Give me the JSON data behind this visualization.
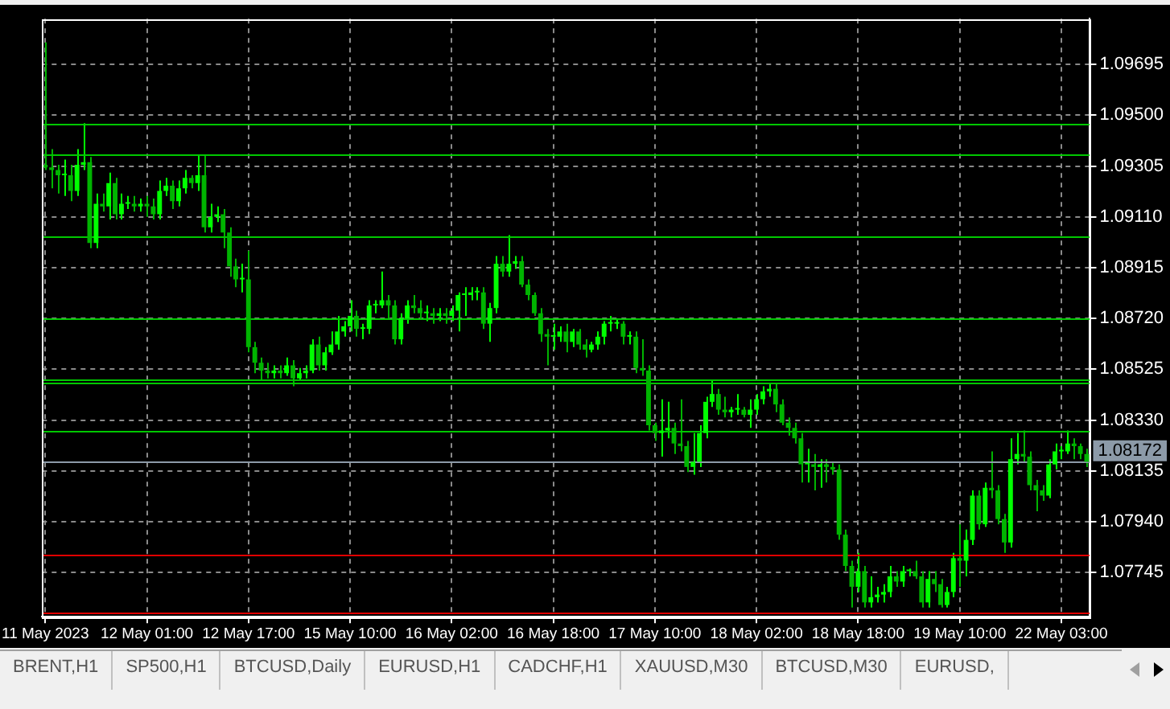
{
  "chart_data": {
    "type": "candlestick",
    "categories": [
      "11 May 2023",
      null,
      null,
      null,
      null,
      null,
      null,
      null,
      null,
      null,
      null,
      null,
      null,
      null,
      null,
      null,
      "12 May 01:00",
      null,
      null,
      null,
      null,
      null,
      null,
      null,
      null,
      null,
      null,
      null,
      null,
      null,
      null,
      null,
      "12 May 17:00",
      null,
      null,
      null,
      null,
      null,
      null,
      null,
      null,
      null,
      null,
      null,
      null,
      null,
      null,
      null,
      "15 May 10:00",
      null,
      null,
      null,
      null,
      null,
      null,
      null,
      null,
      null,
      null,
      null,
      null,
      null,
      null,
      null,
      "16 May 02:00",
      null,
      null,
      null,
      null,
      null,
      null,
      null,
      null,
      null,
      null,
      null,
      null,
      null,
      null,
      null,
      "16 May 18:00",
      null,
      null,
      null,
      null,
      null,
      null,
      null,
      null,
      null,
      null,
      null,
      null,
      null,
      null,
      null,
      "17 May 10:00",
      null,
      null,
      null,
      null,
      null,
      null,
      null,
      null,
      null,
      null,
      null,
      null,
      null,
      null,
      null,
      "18 May 02:00",
      null,
      null,
      null,
      null,
      null,
      null,
      null,
      null,
      null,
      null,
      null,
      null,
      null,
      null,
      null,
      "18 May 18:00",
      null,
      null,
      null,
      null,
      null,
      null,
      null,
      null,
      null,
      null,
      null,
      null,
      null,
      null,
      null,
      "19 May 10:00",
      null,
      null,
      null,
      null,
      null,
      null,
      null,
      null,
      null,
      null,
      null,
      null,
      null,
      null,
      null,
      "22 May 03:00",
      null,
      null,
      null,
      null
    ],
    "colors": [
      "#00b400",
      "#00b400",
      "#00b400",
      "#00ff00",
      "#00b400",
      "#00ff00",
      "#00ff00",
      "#00b400",
      "#00ff00",
      "#00b400",
      "#00ff00",
      "#00b400",
      "#00ff00",
      "#00ff00",
      "#00b400",
      "#00ff00",
      "#00b400",
      "#00b400",
      "#00ff00",
      "#00ff00",
      "#00b400",
      "#00ff00",
      "#00ff00",
      "#00b400",
      "#00ff00",
      "#00b400",
      "#00ff00",
      "#00ff00",
      "#00b400",
      "#00b400",
      "#00b400",
      "#00ff00",
      "#00b400",
      "#00b400",
      "#00b400",
      "#00b400",
      "#00ff00",
      "#00b400",
      "#00ff00",
      "#00b400",
      "#00ff00",
      "#00ff00",
      "#00ff00",
      "#00b400",
      "#00ff00",
      "#00ff00",
      "#00ff00",
      "#00ff00",
      "#00ff00",
      "#00b400",
      "#00ff00",
      "#00ff00",
      "#00ff00",
      "#00ff00",
      "#00b400",
      "#00b400",
      "#00ff00",
      "#00ff00",
      "#00b400",
      "#00b400",
      "#00ff00",
      "#00b400",
      "#00ff00",
      "#00b400",
      "#00ff00",
      "#00ff00",
      "#00ff00",
      "#00ff00",
      "#00ff00",
      "#00b400",
      "#00ff00",
      "#00ff00",
      "#00b400",
      "#00ff00",
      "#00ff00",
      "#00b400",
      "#00b400",
      "#00b400",
      "#00b400",
      "#00b400",
      "#00ff00",
      "#00ff00",
      "#00b400",
      "#00ff00",
      "#00b400",
      "#00b400",
      "#00ff00",
      "#00ff00",
      "#00ff00",
      "#00ff00",
      "#00ff00",
      "#00b400",
      "#00ff00",
      "#00b400",
      "#00b400",
      "#00b400",
      "#00b400",
      "#00ff00",
      "#00ff00",
      "#00b400",
      "#00b400",
      "#00b400",
      "#00ff00",
      "#00ff00",
      "#00ff00",
      "#00ff00",
      "#00b400",
      "#00b400",
      "#00ff00",
      "#00ff00",
      "#00b400",
      "#00ff00",
      "#00ff00",
      "#00ff00",
      "#00ff00",
      "#00b400",
      "#00b400",
      "#00b400",
      "#00b400",
      "#00b400",
      "#00ff00",
      "#00b400",
      "#00ff00",
      "#00b400",
      "#00b400",
      "#00b400",
      "#00b400",
      "#00b400",
      "#00ff00",
      "#00b400",
      "#00ff00",
      "#00ff00",
      "#00ff00",
      "#00ff00",
      "#00b400",
      "#00ff00",
      "#00ff00",
      "#00b400",
      "#00b400",
      "#00ff00",
      "#00b400",
      "#00b400",
      "#00ff00",
      "#00ff00",
      "#00b400",
      "#00ff00",
      "#00ff00",
      "#00b400",
      "#00ff00",
      "#00b400",
      "#00b400",
      "#00b400",
      "#00ff00",
      "#00ff00",
      "#00b400",
      "#00b400",
      "#00b400",
      "#00b400",
      "#00ff00",
      "#00ff00",
      "#00ff00",
      "#00ff00",
      "#00b400",
      "#00b400",
      "#00b400"
    ],
    "ohlc": [
      [
        1.0931,
        1.0978,
        1.0929,
        1.093
      ],
      [
        1.093,
        1.0937,
        1.0922,
        1.0929
      ],
      [
        1.0929,
        1.0931,
        1.092,
        1.0927
      ],
      [
        1.0927,
        1.0933,
        1.0919,
        1.0927
      ],
      [
        1.0927,
        1.0931,
        1.0917,
        1.0921
      ],
      [
        1.0921,
        1.0937,
        1.0919,
        1.0931
      ],
      [
        1.0931,
        1.0947,
        1.0929,
        1.0932
      ],
      [
        1.0932,
        1.0934,
        1.0899,
        1.0901
      ],
      [
        1.0901,
        1.092,
        1.0899,
        1.0916
      ],
      [
        1.0916,
        1.092,
        1.0913,
        1.0915
      ],
      [
        1.0915,
        1.0928,
        1.091,
        1.0924
      ],
      [
        1.0924,
        1.0926,
        1.091,
        1.0912
      ],
      [
        1.0912,
        1.092,
        1.091,
        1.0916
      ],
      [
        1.0916,
        1.0919,
        1.0914,
        1.0916
      ],
      [
        1.0916,
        1.0919,
        1.0913,
        1.0915
      ],
      [
        1.0915,
        1.0918,
        1.0913,
        1.0916
      ],
      [
        1.0916,
        1.0919,
        1.0911,
        1.0915
      ],
      [
        1.0915,
        1.0918,
        1.091,
        1.0912
      ],
      [
        1.0912,
        1.0925,
        1.091,
        1.0921
      ],
      [
        1.0921,
        1.0926,
        1.0919,
        1.0923
      ],
      [
        1.0923,
        1.0925,
        1.0914,
        1.0917
      ],
      [
        1.0917,
        1.0925,
        1.0915,
        1.0922
      ],
      [
        1.0922,
        1.0929,
        1.092,
        1.0926
      ],
      [
        1.0926,
        1.0927,
        1.0922,
        1.0924
      ],
      [
        1.0924,
        1.0935,
        1.0921,
        1.0927
      ],
      [
        1.0927,
        1.0935,
        1.0905,
        1.0907
      ],
      [
        1.0907,
        1.0916,
        1.0905,
        1.0911
      ],
      [
        1.0911,
        1.0915,
        1.0909,
        1.0912
      ],
      [
        1.0912,
        1.0914,
        1.0899,
        1.0905
      ],
      [
        1.0905,
        1.0907,
        1.0888,
        1.0892
      ],
      [
        1.0892,
        1.0895,
        1.0884,
        1.0887
      ],
      [
        1.0887,
        1.0893,
        1.0882,
        1.0887
      ],
      [
        1.0887,
        1.0898,
        1.0859,
        1.0861
      ],
      [
        1.0861,
        1.0863,
        1.0851,
        1.0855
      ],
      [
        1.0855,
        1.0857,
        1.0848,
        1.0852
      ],
      [
        1.0852,
        1.0855,
        1.0849,
        1.0851
      ],
      [
        1.0851,
        1.0854,
        1.0849,
        1.0852
      ],
      [
        1.0852,
        1.0854,
        1.0849,
        1.0851
      ],
      [
        1.0851,
        1.0857,
        1.085,
        1.0854
      ],
      [
        1.0854,
        1.0856,
        1.0846,
        1.0849
      ],
      [
        1.0849,
        1.0853,
        1.0848,
        1.0851
      ],
      [
        1.0851,
        1.0854,
        1.0849,
        1.0852
      ],
      [
        1.0852,
        1.0864,
        1.0851,
        1.0862
      ],
      [
        1.0862,
        1.0865,
        1.0852,
        1.0854
      ],
      [
        1.0854,
        1.0861,
        1.0852,
        1.0859
      ],
      [
        1.0859,
        1.0867,
        1.0858,
        1.0862
      ],
      [
        1.0862,
        1.0873,
        1.086,
        1.0867
      ],
      [
        1.0867,
        1.0871,
        1.0865,
        1.0869
      ],
      [
        1.0869,
        1.0879,
        1.0867,
        1.0873
      ],
      [
        1.0873,
        1.0875,
        1.0865,
        1.0868
      ],
      [
        1.0868,
        1.087,
        1.0864,
        1.0868
      ],
      [
        1.0868,
        1.0879,
        1.0866,
        1.0877
      ],
      [
        1.0877,
        1.0879,
        1.0874,
        1.0877
      ],
      [
        1.0877,
        1.089,
        1.0876,
        1.0879
      ],
      [
        1.0879,
        1.0881,
        1.0872,
        1.0877
      ],
      [
        1.0877,
        1.0879,
        1.0862,
        1.0864
      ],
      [
        1.0864,
        1.0874,
        1.0862,
        1.0872
      ],
      [
        1.0872,
        1.0879,
        1.087,
        1.0877
      ],
      [
        1.0877,
        1.0881,
        1.0874,
        1.0876
      ],
      [
        1.0876,
        1.0879,
        1.0872,
        1.0874
      ],
      [
        1.0874,
        1.0877,
        1.0871,
        1.0874
      ],
      [
        1.0874,
        1.0876,
        1.087,
        1.0873
      ],
      [
        1.0873,
        1.0876,
        1.0871,
        1.0874
      ],
      [
        1.0874,
        1.0876,
        1.087,
        1.0873
      ],
      [
        1.0873,
        1.0877,
        1.0871,
        1.0875
      ],
      [
        1.0875,
        1.0882,
        1.0867,
        1.0881
      ],
      [
        1.0881,
        1.0884,
        1.0873,
        1.0881
      ],
      [
        1.0881,
        1.0884,
        1.0879,
        1.0882
      ],
      [
        1.0882,
        1.0884,
        1.0879,
        1.0882
      ],
      [
        1.0882,
        1.0884,
        1.0868,
        1.087
      ],
      [
        1.087,
        1.0878,
        1.0863,
        1.0876
      ],
      [
        1.0876,
        1.0896,
        1.0874,
        1.0893
      ],
      [
        1.0893,
        1.0896,
        1.0888,
        1.089
      ],
      [
        1.089,
        1.0904,
        1.0888,
        1.0893
      ],
      [
        1.0893,
        1.0896,
        1.0891,
        1.0894
      ],
      [
        1.0894,
        1.0896,
        1.0884,
        1.0885
      ],
      [
        1.0885,
        1.0887,
        1.0879,
        1.0881
      ],
      [
        1.0881,
        1.0882,
        1.0873,
        1.0874
      ],
      [
        1.0874,
        1.0876,
        1.0863,
        1.0866
      ],
      [
        1.0866,
        1.0868,
        1.0854,
        1.0865
      ],
      [
        1.0865,
        1.087,
        1.086,
        1.0865
      ],
      [
        1.0865,
        1.0869,
        1.0863,
        1.0867
      ],
      [
        1.0867,
        1.087,
        1.0859,
        1.0863
      ],
      [
        1.0863,
        1.0868,
        1.0861,
        1.0867
      ],
      [
        1.0867,
        1.0868,
        1.086,
        1.0862
      ],
      [
        1.0862,
        1.0864,
        1.0857,
        1.086
      ],
      [
        1.086,
        1.0863,
        1.0859,
        1.0862
      ],
      [
        1.0862,
        1.0867,
        1.086,
        1.0865
      ],
      [
        1.0865,
        1.0871,
        1.0862,
        1.087
      ],
      [
        1.087,
        1.0873,
        1.0867,
        1.087
      ],
      [
        1.087,
        1.0872,
        1.0868,
        1.087
      ],
      [
        1.087,
        1.0871,
        1.0862,
        1.0865
      ],
      [
        1.0865,
        1.0867,
        1.0862,
        1.0865
      ],
      [
        1.0865,
        1.0867,
        1.0851,
        1.0853
      ],
      [
        1.0853,
        1.0864,
        1.085,
        1.0852
      ],
      [
        1.0852,
        1.0854,
        1.0829,
        1.0831
      ],
      [
        1.0831,
        1.0832,
        1.0825,
        1.0828
      ],
      [
        1.0828,
        1.0841,
        1.0819,
        1.0829
      ],
      [
        1.0829,
        1.084,
        1.0826,
        1.083
      ],
      [
        1.083,
        1.0832,
        1.082,
        1.0824
      ],
      [
        1.0824,
        1.0841,
        1.0821,
        1.0823
      ],
      [
        1.0823,
        1.0825,
        1.0813,
        1.0815
      ],
      [
        1.0815,
        1.0828,
        1.0812,
        1.0817
      ],
      [
        1.0817,
        1.0831,
        1.0815,
        1.0828
      ],
      [
        1.0828,
        1.0842,
        1.0826,
        1.084
      ],
      [
        1.084,
        1.0848,
        1.0838,
        1.0843
      ],
      [
        1.0843,
        1.0845,
        1.0835,
        1.0837
      ],
      [
        1.0837,
        1.0842,
        1.0834,
        1.0836
      ],
      [
        1.0836,
        1.0838,
        1.0834,
        1.0837
      ],
      [
        1.0837,
        1.0843,
        1.0835,
        1.0837
      ],
      [
        1.0837,
        1.0838,
        1.0834,
        1.0835
      ],
      [
        1.0835,
        1.0841,
        1.083,
        1.0837
      ],
      [
        1.0837,
        1.0843,
        1.0835,
        1.0841
      ],
      [
        1.0841,
        1.0846,
        1.0839,
        1.0844
      ],
      [
        1.0844,
        1.0847,
        1.0842,
        1.0845
      ],
      [
        1.0845,
        1.0847,
        1.0836,
        1.0839
      ],
      [
        1.0839,
        1.0841,
        1.0831,
        1.0832
      ],
      [
        1.0832,
        1.0834,
        1.0827,
        1.083
      ],
      [
        1.083,
        1.0832,
        1.0824,
        1.0826
      ],
      [
        1.0826,
        1.0828,
        1.0809,
        1.0816
      ],
      [
        1.0816,
        1.0822,
        1.0809,
        1.0816
      ],
      [
        1.0816,
        1.082,
        1.0806,
        1.0815
      ],
      [
        1.0815,
        1.0818,
        1.0807,
        1.0816
      ],
      [
        1.0816,
        1.0818,
        1.0809,
        1.0815
      ],
      [
        1.0815,
        1.0817,
        1.0812,
        1.0814
      ],
      [
        1.0814,
        1.0816,
        1.0787,
        1.0789
      ],
      [
        1.0789,
        1.0791,
        1.0775,
        1.0777
      ],
      [
        1.0777,
        1.0779,
        1.0761,
        1.0769
      ],
      [
        1.0769,
        1.0782,
        1.0767,
        1.0775
      ],
      [
        1.0775,
        1.0777,
        1.0761,
        1.0763
      ],
      [
        1.0763,
        1.0773,
        1.0761,
        1.0765
      ],
      [
        1.0765,
        1.0769,
        1.0763,
        1.0766
      ],
      [
        1.0766,
        1.077,
        1.0763,
        1.0767
      ],
      [
        1.0767,
        1.0777,
        1.0765,
        1.0773
      ],
      [
        1.0773,
        1.0775,
        1.0769,
        1.0771
      ],
      [
        1.0771,
        1.0777,
        1.0769,
        1.0775
      ],
      [
        1.0775,
        1.0776,
        1.0773,
        1.0775
      ],
      [
        1.0775,
        1.0779,
        1.0772,
        1.0773
      ],
      [
        1.0773,
        1.0775,
        1.0761,
        1.0763
      ],
      [
        1.0763,
        1.0775,
        1.0761,
        1.0772
      ],
      [
        1.0772,
        1.0775,
        1.0767,
        1.077
      ],
      [
        1.077,
        1.0772,
        1.0761,
        1.0762
      ],
      [
        1.0762,
        1.0769,
        1.0761,
        1.0767
      ],
      [
        1.0767,
        1.0782,
        1.0765,
        1.078
      ],
      [
        1.078,
        1.0793,
        1.0769,
        1.0779
      ],
      [
        1.0779,
        1.0791,
        1.0773,
        1.0787
      ],
      [
        1.0787,
        1.0806,
        1.0785,
        1.0804
      ],
      [
        1.0804,
        1.0806,
        1.0791,
        1.0793
      ],
      [
        1.0793,
        1.0809,
        1.0792,
        1.0807
      ],
      [
        1.0807,
        1.0821,
        1.0803,
        1.0806
      ],
      [
        1.0806,
        1.0808,
        1.0793,
        1.0795
      ],
      [
        1.0795,
        1.0797,
        1.0782,
        1.0786
      ],
      [
        1.0786,
        1.0826,
        1.0784,
        1.0818
      ],
      [
        1.0818,
        1.0828,
        1.0816,
        1.082
      ],
      [
        1.082,
        1.0829,
        1.0817,
        1.0819
      ],
      [
        1.0819,
        1.0821,
        1.0806,
        1.0808
      ],
      [
        1.0808,
        1.081,
        1.0798,
        1.0806
      ],
      [
        1.0806,
        1.0808,
        1.0802,
        1.0804
      ],
      [
        1.0804,
        1.0818,
        1.0803,
        1.0816
      ],
      [
        1.0816,
        1.0824,
        1.0814,
        1.0821
      ],
      [
        1.0821,
        1.0823,
        1.0818,
        1.0821
      ],
      [
        1.0821,
        1.0829,
        1.082,
        1.0824
      ],
      [
        1.0824,
        1.0826,
        1.0818,
        1.0823
      ],
      [
        1.0823,
        1.0824,
        1.0818,
        1.082
      ],
      [
        1.082,
        1.0822,
        1.0815,
        1.0817
      ]
    ],
    "ylim": [
      1.07575,
      1.09871
    ],
    "yticks": [
      {
        "value": 1.07745,
        "label": "1.07745"
      },
      {
        "value": 1.0794,
        "label": "1.07940"
      },
      {
        "value": 1.08135,
        "label": "1.08135"
      },
      {
        "value": 1.0833,
        "label": "1.08330"
      },
      {
        "value": 1.08525,
        "label": "1.08525"
      },
      {
        "value": 1.0872,
        "label": "1.08720"
      },
      {
        "value": 1.08915,
        "label": "1.08915"
      },
      {
        "value": 1.0911,
        "label": "1.09110"
      },
      {
        "value": 1.09305,
        "label": "1.09305"
      },
      {
        "value": 1.095,
        "label": "1.09500"
      },
      {
        "value": 1.09695,
        "label": "1.09695"
      }
    ],
    "grid": true,
    "legend": false,
    "ref_lines": [
      {
        "axis": "y",
        "value": 1.0947,
        "color": "#00c800"
      },
      {
        "axis": "y",
        "value": 1.09348,
        "color": "#00c800"
      },
      {
        "axis": "y",
        "value": 1.09037,
        "color": "#00c800"
      },
      {
        "axis": "y",
        "value": 1.0872,
        "color": "#00c800"
      },
      {
        "axis": "y",
        "value": 1.08483,
        "color": "#00c800"
      },
      {
        "axis": "y",
        "value": 1.08471,
        "color": "#00c800"
      },
      {
        "axis": "y",
        "value": 1.08288,
        "color": "#00c800"
      },
      {
        "axis": "y",
        "value": 1.07813,
        "color": "#e00000"
      },
      {
        "axis": "y",
        "value": 1.07594,
        "color": "#e00000"
      },
      {
        "axis": "y",
        "value": 1.08172,
        "color": "#8c9aa8",
        "label": "1.08172"
      }
    ],
    "annotations": [
      "BRENT,H1",
      "SP500,H1",
      "BTCUSD,Daily",
      "EURUSD,H1",
      "CADCHF,H1",
      "XAUUSD,M30",
      "BTCUSD,M30",
      "EURUSD,"
    ]
  }
}
